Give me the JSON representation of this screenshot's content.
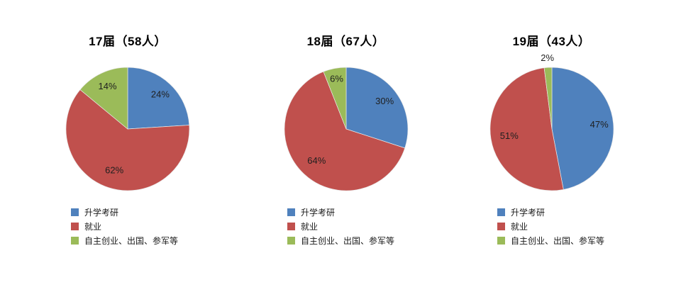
{
  "page": {
    "background": "#ffffff"
  },
  "series_colors": [
    "#4F81BD",
    "#C0504D",
    "#9BBB59"
  ],
  "slice_border_color": "#e8e8e8",
  "label_text_color": "#1f1f1f",
  "title_text_color": "#000000",
  "legend_labels": [
    "升学考研",
    "就业",
    "自主创业、出国、参军等"
  ],
  "chart_data": [
    {
      "type": "pie",
      "title": "17届（58人）",
      "categories": [
        "升学考研",
        "就业",
        "自主创业、出国、参军等"
      ],
      "values": [
        24,
        62,
        14
      ],
      "labels": [
        "24%",
        "62%",
        "14%"
      ],
      "unit": "percent",
      "start_angle": "12-oclock",
      "direction": "clockwise",
      "data_labels": "inside",
      "legend_position": "bottom-left"
    },
    {
      "type": "pie",
      "title": "18届（67人）",
      "categories": [
        "升学考研",
        "就业",
        "自主创业、出国、参军等"
      ],
      "values": [
        30,
        64,
        6
      ],
      "labels": [
        "30%",
        "64%",
        "6%"
      ],
      "unit": "percent",
      "start_angle": "12-oclock",
      "direction": "clockwise",
      "data_labels": "inside",
      "legend_position": "bottom-left"
    },
    {
      "type": "pie",
      "title": "19届（43人）",
      "categories": [
        "升学考研",
        "就业",
        "自主创业、出国、参军等"
      ],
      "values": [
        47,
        51,
        2
      ],
      "labels": [
        "47%",
        "51%",
        "2%"
      ],
      "unit": "percent",
      "start_angle": "12-oclock",
      "direction": "clockwise",
      "data_labels": "inside-except-smallest-outside",
      "legend_position": "bottom-left"
    }
  ]
}
